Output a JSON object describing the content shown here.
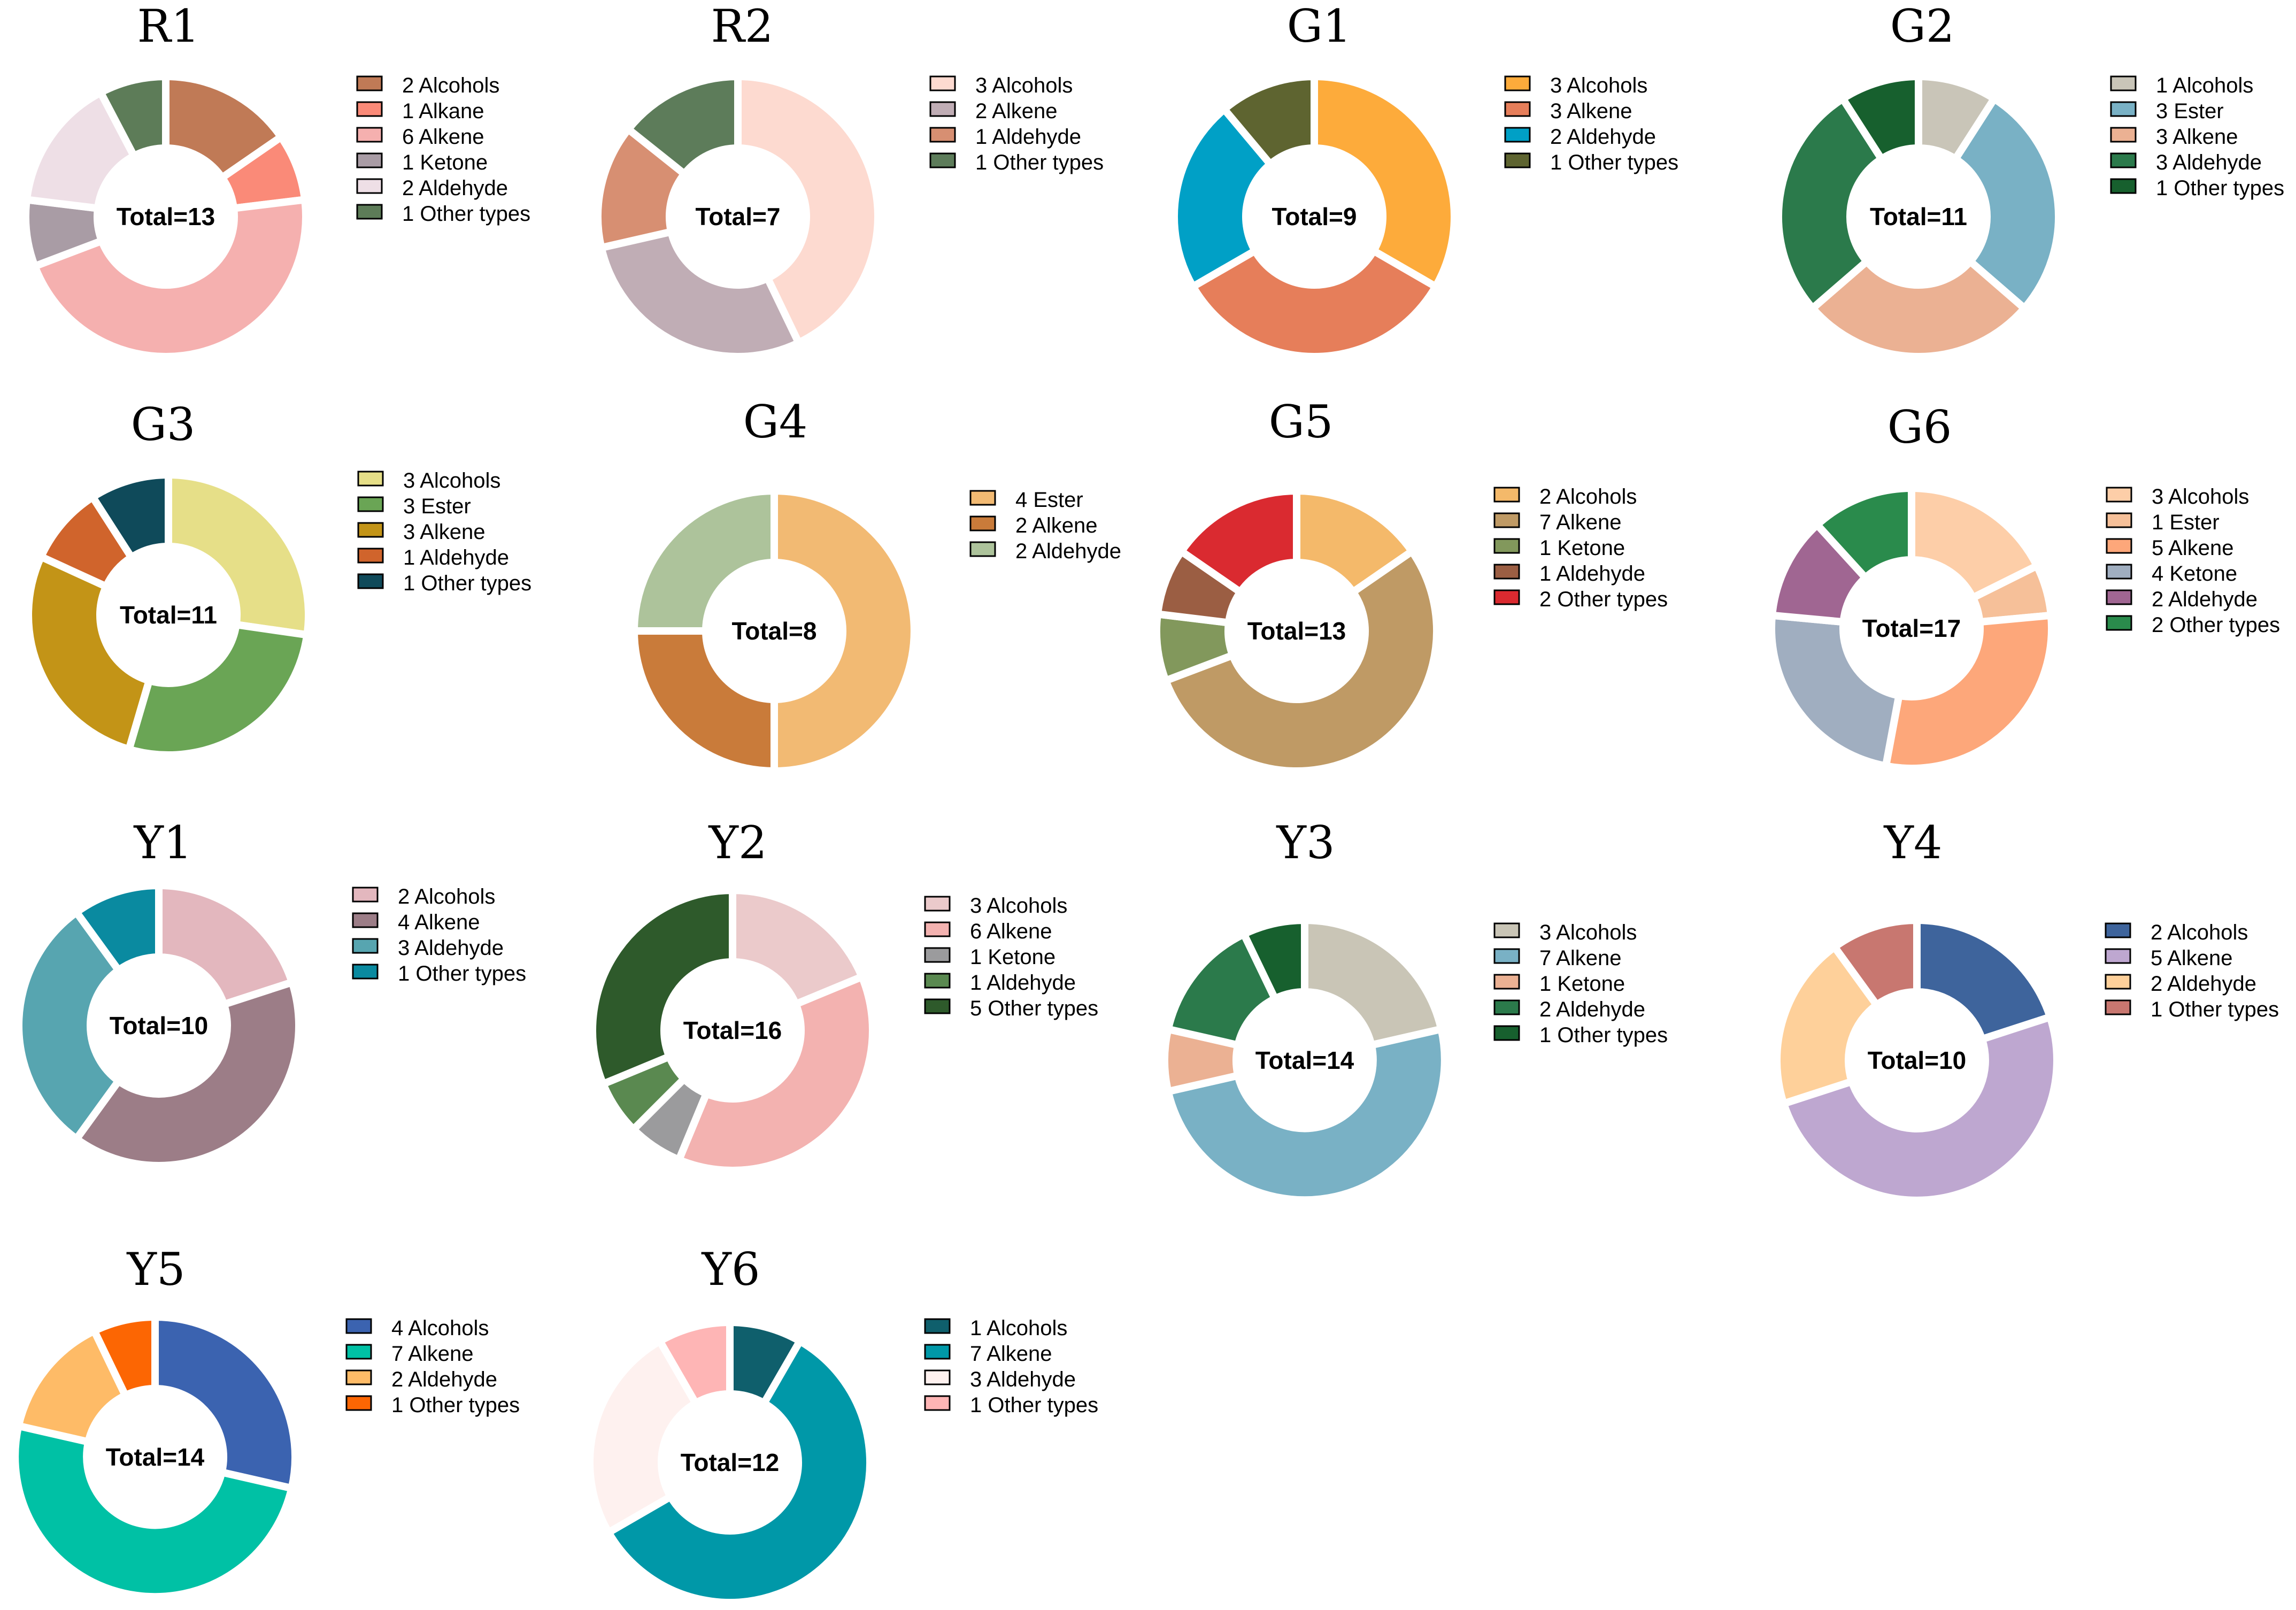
{
  "chart_data": [
    {
      "type": "donut",
      "title": "R1",
      "total_label": "Total=13",
      "slices": [
        {
          "label": "2 Alcohols",
          "value": 2,
          "color": "#C07A56"
        },
        {
          "label": "1 Alkane",
          "value": 1,
          "color": "#FA8A78"
        },
        {
          "label": "6 Alkene",
          "value": 6,
          "color": "#F5B0AF"
        },
        {
          "label": "1 Ketone",
          "value": 1,
          "color": "#A99CA5"
        },
        {
          "label": "2 Aldehyde",
          "value": 2,
          "color": "#EEDFE6"
        },
        {
          "label": "1 Other types",
          "value": 1,
          "color": "#5D7C58"
        }
      ]
    },
    {
      "type": "donut",
      "title": "R2",
      "total_label": "Total=7",
      "slices": [
        {
          "label": "3 Alcohols",
          "value": 3,
          "color": "#FDDAD0"
        },
        {
          "label": "2 Alkene",
          "value": 2,
          "color": "#C0ADB5"
        },
        {
          "label": "1 Aldehyde",
          "value": 1,
          "color": "#D78F72"
        },
        {
          "label": "1 Other types",
          "value": 1,
          "color": "#5D7C5A"
        }
      ]
    },
    {
      "type": "donut",
      "title": "G1",
      "total_label": "Total=9",
      "slices": [
        {
          "label": "3 Alcohols",
          "value": 3,
          "color": "#FDAB3B"
        },
        {
          "label": "3 Alkene",
          "value": 3,
          "color": "#E67E5A"
        },
        {
          "label": "2 Aldehyde",
          "value": 2,
          "color": "#00A0C6"
        },
        {
          "label": "1 Other types",
          "value": 1,
          "color": "#5E6430"
        }
      ]
    },
    {
      "type": "donut",
      "title": "G2",
      "total_label": "Total=11",
      "slices": [
        {
          "label": "1 Alcohols",
          "value": 1,
          "color": "#C9C5B8"
        },
        {
          "label": "3 Ester",
          "value": 3,
          "color": "#79B1C5"
        },
        {
          "label": "3 Alkene",
          "value": 3,
          "color": "#EBB193"
        },
        {
          "label": "3 Aldehyde",
          "value": 3,
          "color": "#2B7A4B"
        },
        {
          "label": "1 Other types",
          "value": 1,
          "color": "#17602E"
        }
      ]
    },
    {
      "type": "donut",
      "title": "G3",
      "total_label": "Total=11",
      "slices": [
        {
          "label": "3 Alcohols",
          "value": 3,
          "color": "#E6DF88"
        },
        {
          "label": "3 Ester",
          "value": 3,
          "color": "#6AA555"
        },
        {
          "label": "3 Alkene",
          "value": 3,
          "color": "#C39417"
        },
        {
          "label": "1 Aldehyde",
          "value": 1,
          "color": "#D0642C"
        },
        {
          "label": "1 Other types",
          "value": 1,
          "color": "#0F4A5A"
        }
      ]
    },
    {
      "type": "donut",
      "title": "G4",
      "total_label": "Total=8",
      "slices": [
        {
          "label": "4 Ester",
          "value": 4,
          "color": "#F2BA73"
        },
        {
          "label": "2 Alkene",
          "value": 2,
          "color": "#C97B3A"
        },
        {
          "label": "2 Aldehyde",
          "value": 2,
          "color": "#ADC39B"
        }
      ]
    },
    {
      "type": "donut",
      "title": "G5",
      "total_label": "Total=13",
      "slices": [
        {
          "label": "2 Alcohols",
          "value": 2,
          "color": "#F4B96A"
        },
        {
          "label": "7 Alkene",
          "value": 7,
          "color": "#BF9A65"
        },
        {
          "label": "1 Ketone",
          "value": 1,
          "color": "#82985C"
        },
        {
          "label": "1 Aldehyde",
          "value": 1,
          "color": "#9B5E43"
        },
        {
          "label": "2 Other types",
          "value": 2,
          "color": "#DA2A30"
        }
      ]
    },
    {
      "type": "donut",
      "title": "G6",
      "total_label": "Total=17",
      "slices": [
        {
          "label": "3 Alcohols",
          "value": 3,
          "color": "#FDCEA8"
        },
        {
          "label": "1 Ester",
          "value": 1,
          "color": "#F6C099"
        },
        {
          "label": "5 Alkene",
          "value": 5,
          "color": "#FDA77A"
        },
        {
          "label": "4 Ketone",
          "value": 4,
          "color": "#A0AEC0"
        },
        {
          "label": "2 Aldehyde",
          "value": 2,
          "color": "#A06692"
        },
        {
          "label": "2 Other types",
          "value": 2,
          "color": "#2A8B4C"
        }
      ]
    },
    {
      "type": "donut",
      "title": "Y1",
      "total_label": "Total=10",
      "slices": [
        {
          "label": "2 Alcohols",
          "value": 2,
          "color": "#E3B7BE"
        },
        {
          "label": "4 Alkene",
          "value": 4,
          "color": "#9C7D87"
        },
        {
          "label": "3 Aldehyde",
          "value": 3,
          "color": "#57A5B0"
        },
        {
          "label": "1 Other types",
          "value": 1,
          "color": "#0A8AA0"
        }
      ]
    },
    {
      "type": "donut",
      "title": "Y2",
      "total_label": "Total=16",
      "slices": [
        {
          "label": "3 Alcohols",
          "value": 3,
          "color": "#EBCACB"
        },
        {
          "label": "6 Alkene",
          "value": 6,
          "color": "#F3B2B0"
        },
        {
          "label": "1 Ketone",
          "value": 1,
          "color": "#9B9B9D"
        },
        {
          "label": "1 Aldehyde",
          "value": 1,
          "color": "#5A8950"
        },
        {
          "label": "5 Other types",
          "value": 5,
          "color": "#2E5A2B"
        }
      ]
    },
    {
      "type": "donut",
      "title": "Y3",
      "total_label": "Total=14",
      "slices": [
        {
          "label": "3 Alcohols",
          "value": 3,
          "color": "#C9C5B6"
        },
        {
          "label": "7 Alkene",
          "value": 7,
          "color": "#79B1C5"
        },
        {
          "label": "1 Ketone",
          "value": 1,
          "color": "#EBB193"
        },
        {
          "label": "2 Aldehyde",
          "value": 2,
          "color": "#2B7A4B"
        },
        {
          "label": "1 Other types",
          "value": 1,
          "color": "#17602E"
        }
      ]
    },
    {
      "type": "donut",
      "title": "Y4",
      "total_label": "Total=10",
      "slices": [
        {
          "label": "2 Alcohols",
          "value": 2,
          "color": "#3E649C"
        },
        {
          "label": "5 Alkene",
          "value": 5,
          "color": "#BEA7D0"
        },
        {
          "label": "2 Aldehyde",
          "value": 2,
          "color": "#FED09A"
        },
        {
          "label": "1 Other types",
          "value": 1,
          "color": "#C87770"
        }
      ]
    },
    {
      "type": "donut",
      "title": "Y5",
      "total_label": "Total=14",
      "slices": [
        {
          "label": "4 Alcohols",
          "value": 4,
          "color": "#3B63B0"
        },
        {
          "label": "7 Alkene",
          "value": 7,
          "color": "#00C1A5"
        },
        {
          "label": "2 Aldehyde",
          "value": 2,
          "color": "#FEBB67"
        },
        {
          "label": "1 Other types",
          "value": 1,
          "color": "#FC6603"
        }
      ]
    },
    {
      "type": "donut",
      "title": "Y6",
      "total_label": "Total=12",
      "slices": [
        {
          "label": "1 Alcohols",
          "value": 1,
          "color": "#0F5F6C"
        },
        {
          "label": "7 Alkene",
          "value": 7,
          "color": "#0098A8"
        },
        {
          "label": "3 Aldehyde",
          "value": 3,
          "color": "#FEF1EF"
        },
        {
          "label": "1 Other types",
          "value": 1,
          "color": "#FEB5B5"
        }
      ]
    }
  ]
}
